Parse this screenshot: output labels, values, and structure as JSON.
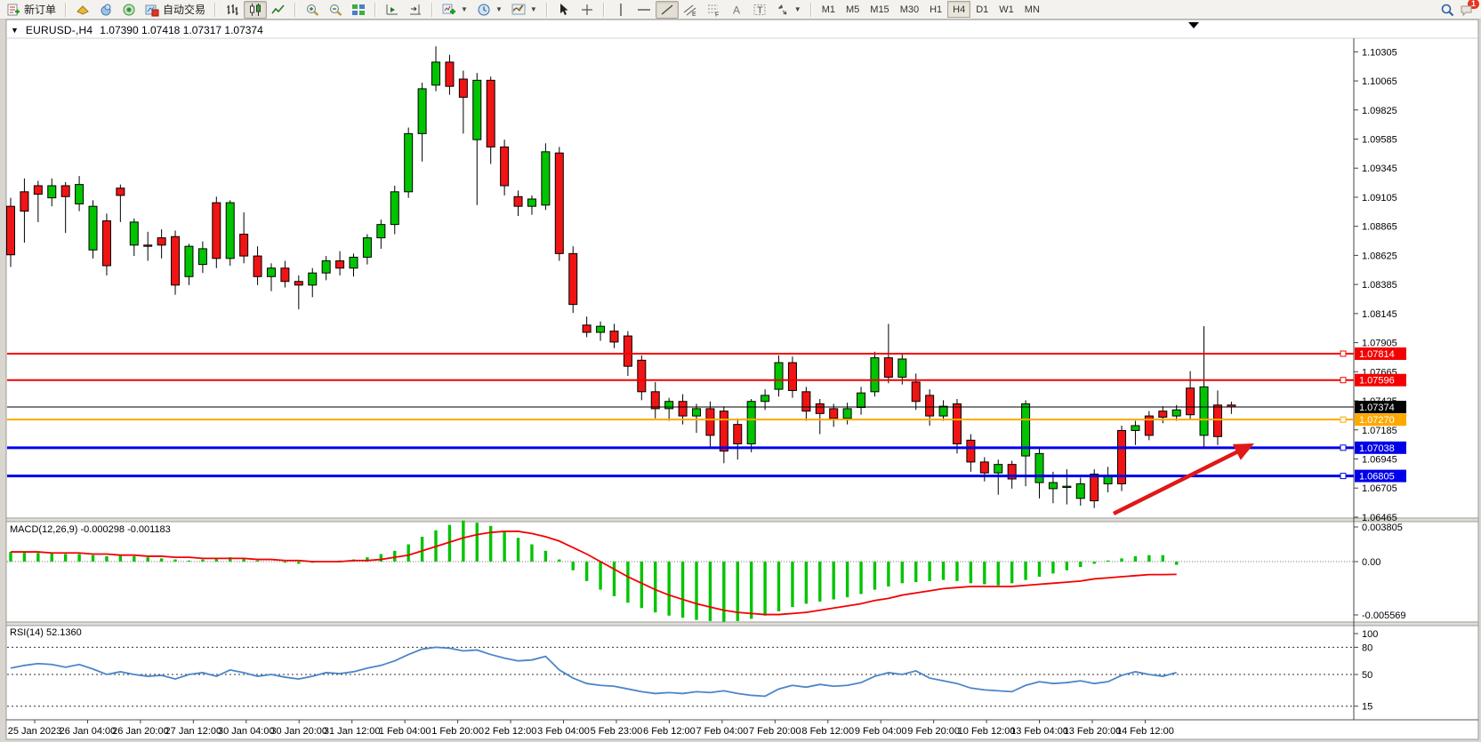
{
  "toolbar": {
    "new_order_label": "新订单",
    "autotrade_label": "自动交易",
    "timeframes": [
      "M1",
      "M5",
      "M15",
      "M30",
      "H1",
      "H4",
      "D1",
      "W1",
      "MN"
    ],
    "active_timeframe": "H4",
    "notification_badge": "1",
    "annotation_tool_labels": {
      "channel": "E",
      "fibonacci": "F",
      "text": "A",
      "label": "T"
    }
  },
  "chart": {
    "title": {
      "symbol_period": "EURUSD-,H4",
      "ohlc": "1.07390 1.07418 1.07317 1.07374"
    },
    "price_axis_ticks": [
      "1.10305",
      "1.10065",
      "1.09825",
      "1.09585",
      "1.09345",
      "1.09105",
      "1.08865",
      "1.08625",
      "1.08385",
      "1.08145",
      "1.07905",
      "1.07665",
      "1.07425",
      "1.07185",
      "1.06945",
      "1.06705",
      "1.06465"
    ],
    "hlines": [
      {
        "label": "1.07814",
        "price": 1.07814,
        "color": "#f40000",
        "width": 2
      },
      {
        "label": "1.07596",
        "price": 1.07596,
        "color": "#f40000",
        "width": 2
      },
      {
        "label": "1.07270",
        "price": 1.0727,
        "color": "#ffa800",
        "width": 2
      },
      {
        "label": "1.07038",
        "price": 1.07038,
        "color": "#0000e8",
        "width": 3
      },
      {
        "label": "1.06805",
        "price": 1.06805,
        "color": "#0000e8",
        "width": 3
      }
    ],
    "current_price": {
      "label": "1.07374",
      "price": 1.07374,
      "color": "#000000"
    },
    "date_labels": [
      "25 Jan 2023",
      "26 Jan 04:00",
      "26 Jan 20:00",
      "27 Jan 12:00",
      "30 Jan 04:00",
      "30 Jan 20:00",
      "31 Jan 12:00",
      "1 Feb 04:00",
      "1 Feb 20:00",
      "2 Feb 12:00",
      "3 Feb 04:00",
      "5 Feb 23:00",
      "6 Feb 12:00",
      "7 Feb 04:00",
      "7 Feb 20:00",
      "8 Feb 12:00",
      "9 Feb 04:00",
      "9 Feb 20:00",
      "10 Feb 12:00",
      "13 Feb 04:00",
      "13 Feb 20:00",
      "14 Feb 12:00"
    ],
    "bull_color": "#00c400",
    "bear_color": "#f01414",
    "candles": [
      [
        1.0903,
        1.091,
        1.0853,
        1.0863
      ],
      [
        1.0915,
        1.0926,
        1.0873,
        1.0899
      ],
      [
        1.092,
        1.0924,
        1.089,
        1.0913
      ],
      [
        1.091,
        1.0926,
        1.0903,
        1.092
      ],
      [
        1.092,
        1.0923,
        1.0881,
        1.0911
      ],
      [
        1.0905,
        1.0928,
        1.0899,
        1.0921
      ],
      [
        1.0867,
        1.0908,
        1.086,
        1.0903
      ],
      [
        1.0891,
        1.0897,
        1.0846,
        1.0854
      ],
      [
        1.0918,
        1.0921,
        1.089,
        1.0912
      ],
      [
        1.0871,
        1.0893,
        1.0862,
        1.089
      ],
      [
        1.0871,
        1.0882,
        1.0858,
        1.087
      ],
      [
        1.0877,
        1.0884,
        1.086,
        1.0871
      ],
      [
        1.0878,
        1.0883,
        1.083,
        1.0838
      ],
      [
        1.0845,
        1.0872,
        1.0838,
        1.087
      ],
      [
        1.0855,
        1.0874,
        1.0848,
        1.0868
      ],
      [
        1.0906,
        1.0911,
        1.0852,
        1.086
      ],
      [
        1.086,
        1.0908,
        1.0854,
        1.0906
      ],
      [
        1.088,
        1.0898,
        1.0856,
        1.0862
      ],
      [
        1.0862,
        1.087,
        1.0838,
        1.0845
      ],
      [
        1.0845,
        1.0856,
        1.0833,
        1.0852
      ],
      [
        1.0852,
        1.0858,
        1.0836,
        1.0841
      ],
      [
        1.0841,
        1.0846,
        1.0818,
        1.0838
      ],
      [
        1.0838,
        1.0852,
        1.0828,
        1.0848
      ],
      [
        1.0848,
        1.0862,
        1.0842,
        1.0858
      ],
      [
        1.0858,
        1.0866,
        1.0846,
        1.0852
      ],
      [
        1.0852,
        1.0864,
        1.0845,
        1.0861
      ],
      [
        1.0861,
        1.088,
        1.0855,
        1.0877
      ],
      [
        1.0877,
        1.0892,
        1.0868,
        1.0888
      ],
      [
        1.0888,
        1.092,
        1.088,
        1.0915
      ],
      [
        1.0915,
        1.0968,
        1.091,
        1.0963
      ],
      [
        1.0963,
        1.1005,
        1.094,
        1.1
      ],
      [
        1.1003,
        1.1035,
        1.0998,
        1.1022
      ],
      [
        1.1022,
        1.1028,
        1.0995,
        1.1002
      ],
      [
        1.1008,
        1.1015,
        1.0963,
        1.0993
      ],
      [
        1.0958,
        1.1013,
        1.0904,
        1.1007
      ],
      [
        1.1007,
        1.101,
        1.0938,
        1.0952
      ],
      [
        1.0952,
        1.0958,
        1.0912,
        1.092
      ],
      [
        1.0911,
        1.0916,
        1.0895,
        1.0903
      ],
      [
        1.0903,
        1.0912,
        1.0896,
        1.0909
      ],
      [
        1.0904,
        1.0955,
        1.09,
        1.0948
      ],
      [
        1.0947,
        1.0952,
        1.0858,
        1.0864
      ],
      [
        1.0864,
        1.087,
        1.0815,
        1.0822
      ],
      [
        1.0805,
        1.0812,
        1.0795,
        1.0799
      ],
      [
        1.0799,
        1.0808,
        1.0792,
        1.0804
      ],
      [
        1.08,
        1.0806,
        1.0786,
        1.0791
      ],
      [
        1.0796,
        1.08,
        1.0763,
        1.0771
      ],
      [
        1.0776,
        1.078,
        1.0743,
        1.075
      ],
      [
        1.075,
        1.0758,
        1.0728,
        1.0736
      ],
      [
        1.0736,
        1.0745,
        1.0726,
        1.0742
      ],
      [
        1.0742,
        1.0748,
        1.0723,
        1.073
      ],
      [
        1.073,
        1.074,
        1.0716,
        1.0736
      ],
      [
        1.0736,
        1.0742,
        1.0703,
        1.0714
      ],
      [
        1.0734,
        1.0738,
        1.0691,
        1.0701
      ],
      [
        1.0723,
        1.0728,
        1.0694,
        1.0707
      ],
      [
        1.0707,
        1.0744,
        1.07,
        1.0742
      ],
      [
        1.0742,
        1.0752,
        1.0735,
        1.0747
      ],
      [
        1.0752,
        1.078,
        1.0746,
        1.0774
      ],
      [
        1.0774,
        1.0779,
        1.0745,
        1.0751
      ],
      [
        1.075,
        1.0754,
        1.0726,
        1.0734
      ],
      [
        1.074,
        1.0744,
        1.0715,
        1.0732
      ],
      [
        1.0736,
        1.074,
        1.0721,
        1.0728
      ],
      [
        1.0728,
        1.0741,
        1.0723,
        1.0736
      ],
      [
        1.0737,
        1.0754,
        1.0731,
        1.0749
      ],
      [
        1.075,
        1.0783,
        1.0746,
        1.0778
      ],
      [
        1.0778,
        1.0806,
        1.0757,
        1.0762
      ],
      [
        1.0762,
        1.0781,
        1.0756,
        1.0777
      ],
      [
        1.0758,
        1.0765,
        1.0735,
        1.0742
      ],
      [
        1.0747,
        1.0752,
        1.0722,
        1.073
      ],
      [
        1.073,
        1.0743,
        1.0726,
        1.0738
      ],
      [
        1.074,
        1.0744,
        1.0699,
        1.0707
      ],
      [
        1.071,
        1.0715,
        1.0684,
        1.0692
      ],
      [
        1.0692,
        1.0696,
        1.0676,
        1.0683
      ],
      [
        1.0683,
        1.0694,
        1.0665,
        1.069
      ],
      [
        1.069,
        1.0693,
        1.067,
        1.0678
      ],
      [
        1.0697,
        1.0743,
        1.0672,
        1.074
      ],
      [
        1.0675,
        1.0703,
        1.0662,
        1.0699
      ],
      [
        1.067,
        1.0684,
        1.0658,
        1.0675
      ],
      [
        1.0671,
        1.0686,
        1.0657,
        1.0672
      ],
      [
        1.0662,
        1.0679,
        1.0656,
        1.0674
      ],
      [
        1.0682,
        1.0686,
        1.0654,
        1.066
      ],
      [
        1.0674,
        1.0688,
        1.0667,
        1.0681
      ],
      [
        1.0718,
        1.0722,
        1.0668,
        1.0674
      ],
      [
        1.0718,
        1.0726,
        1.0706,
        1.0722
      ],
      [
        1.073,
        1.0734,
        1.071,
        1.0714
      ],
      [
        1.0734,
        1.0738,
        1.0724,
        1.0729
      ],
      [
        1.073,
        1.0739,
        1.0726,
        1.0735
      ],
      [
        1.0753,
        1.0767,
        1.0727,
        1.0731
      ],
      [
        1.0714,
        1.0804,
        1.0704,
        1.0754
      ],
      [
        1.0739,
        1.0751,
        1.0706,
        1.0713
      ],
      [
        1.0739,
        1.07418,
        1.07317,
        1.07374
      ]
    ]
  },
  "macd": {
    "label": "MACD(12,26,9) -0.000298 -0.001183",
    "axis_ticks": [
      "0.003805",
      "0.00",
      "-0.005569"
    ],
    "histogram_color": "#00c400",
    "signal_color": "#f40000",
    "histogram": [
      0.0009,
      0.0009,
      0.0008,
      0.0008,
      0.0007,
      0.0007,
      0.0006,
      0.0005,
      0.0006,
      0.0005,
      0.0004,
      0.0003,
      0.0002,
      0.0001,
      0.0002,
      0.0003,
      0.0004,
      0.0003,
      0.0001,
      0.0,
      -0.0001,
      -0.0002,
      -0.0001,
      0.0,
      0.0001,
      0.0002,
      0.0004,
      0.0007,
      0.001,
      0.0016,
      0.0023,
      0.0029,
      0.0034,
      0.0038,
      0.0036,
      0.0033,
      0.0028,
      0.0022,
      0.0016,
      0.001,
      0.0002,
      -0.0008,
      -0.0018,
      -0.0026,
      -0.0032,
      -0.0038,
      -0.0043,
      -0.0047,
      -0.005,
      -0.0052,
      -0.0054,
      -0.0055,
      -0.005569,
      -0.0055,
      -0.0053,
      -0.005,
      -0.0046,
      -0.0042,
      -0.0039,
      -0.0037,
      -0.0035,
      -0.0033,
      -0.003,
      -0.0026,
      -0.0023,
      -0.002,
      -0.0019,
      -0.0018,
      -0.0017,
      -0.0018,
      -0.002,
      -0.0021,
      -0.0022,
      -0.002,
      -0.0017,
      -0.0014,
      -0.0011,
      -0.0008,
      -0.0005,
      -0.0002,
      0.0001,
      0.0003,
      0.0005,
      0.0006,
      0.0006,
      -0.000298
    ],
    "signal": [
      0.0009,
      0.0009,
      0.0009,
      0.0008,
      0.0008,
      0.0008,
      0.0007,
      0.0007,
      0.0006,
      0.0006,
      0.0005,
      0.0005,
      0.0004,
      0.0004,
      0.0003,
      0.0003,
      0.0003,
      0.0003,
      0.0002,
      0.0002,
      0.0001,
      0.0001,
      0.0,
      0.0,
      0.0,
      0.0001,
      0.0001,
      0.0002,
      0.0004,
      0.0006,
      0.001,
      0.0014,
      0.0018,
      0.0022,
      0.0025,
      0.0027,
      0.0028,
      0.0028,
      0.0026,
      0.0023,
      0.0019,
      0.0013,
      0.0007,
      0.0,
      -0.0007,
      -0.0014,
      -0.002,
      -0.0026,
      -0.0031,
      -0.0035,
      -0.0039,
      -0.0042,
      -0.0045,
      -0.0047,
      -0.0048,
      -0.0049,
      -0.0049,
      -0.0048,
      -0.0047,
      -0.0045,
      -0.0043,
      -0.0041,
      -0.0039,
      -0.0036,
      -0.0034,
      -0.0031,
      -0.0029,
      -0.0027,
      -0.0025,
      -0.0024,
      -0.0023,
      -0.0023,
      -0.0023,
      -0.0023,
      -0.0022,
      -0.0021,
      -0.002,
      -0.0019,
      -0.0018,
      -0.0016,
      -0.0015,
      -0.0014,
      -0.0013,
      -0.0012,
      -0.0012,
      -0.001183
    ]
  },
  "rsi": {
    "label": "RSI(14) 52.1360",
    "axis_ticks": [
      "100",
      "80",
      "50",
      "15"
    ],
    "levels": [
      80,
      50,
      15
    ],
    "line_color": "#4a86c8",
    "values": [
      57,
      60,
      62,
      61,
      58,
      61,
      56,
      50,
      53,
      50,
      48,
      49,
      45,
      50,
      52,
      48,
      55,
      52,
      48,
      50,
      47,
      45,
      48,
      52,
      51,
      53,
      57,
      60,
      65,
      72,
      78,
      80,
      79,
      76,
      77,
      72,
      68,
      65,
      66,
      70,
      55,
      46,
      40,
      38,
      37,
      34,
      31,
      29,
      30,
      29,
      31,
      30,
      32,
      29,
      27,
      26,
      34,
      38,
      36,
      39,
      37,
      38,
      41,
      48,
      52,
      50,
      54,
      46,
      43,
      40,
      35,
      33,
      32,
      31,
      38,
      42,
      40,
      41,
      43,
      40,
      42,
      49,
      53,
      50,
      48,
      52.14
    ]
  },
  "annotation_arrow": {
    "from": [
      1252,
      578
    ],
    "to": [
      1410,
      499
    ],
    "color": "#e01818"
  }
}
